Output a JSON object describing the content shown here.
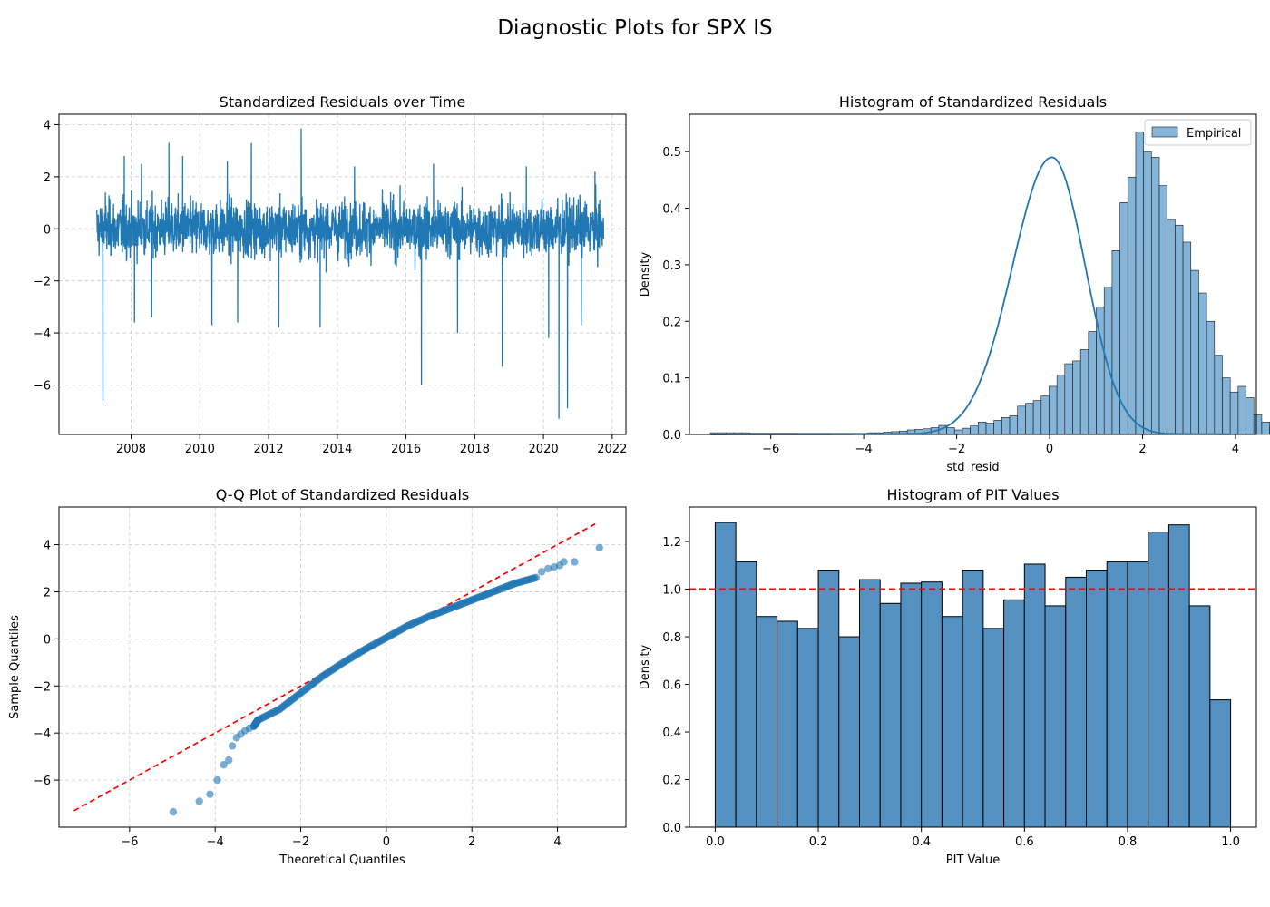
{
  "figure": {
    "suptitle": "Diagnostic Plots for SPX IS"
  },
  "colors": {
    "blue": "#1f77b4",
    "hist_fill": "#5b9bc9",
    "pit_fill": "#5490c0",
    "red": "#ff0000",
    "grid": "#cccccc"
  },
  "chart_data": [
    {
      "id": "residuals",
      "type": "line",
      "title": "Standardized Residuals over Time",
      "xlabel": "",
      "ylabel": "",
      "xlim": [
        2005.9,
        2022.4
      ],
      "ylim": [
        -7.9,
        4.4
      ],
      "xticks": [
        2008,
        2010,
        2012,
        2014,
        2016,
        2018,
        2020,
        2022
      ],
      "xtick_labels": [
        "2008",
        "2010",
        "2012",
        "2014",
        "2016",
        "2018",
        "2020",
        "2022"
      ],
      "yticks": [
        4,
        2,
        0,
        -2,
        -4,
        -6
      ],
      "ytick_labels": [
        "4",
        "2",
        "0",
        "−2",
        "−4",
        "−6"
      ],
      "grid": true,
      "series": [
        {
          "name": "std_resid",
          "x_range": [
            2007.0,
            2021.75
          ],
          "approx_band": [
            -2.5,
            2.2
          ]
        }
      ],
      "spikes": [
        {
          "x": 2007.18,
          "y": -6.6
        },
        {
          "x": 2007.25,
          "y": 1.4
        },
        {
          "x": 2007.8,
          "y": 2.8
        },
        {
          "x": 2008.1,
          "y": -3.6
        },
        {
          "x": 2008.3,
          "y": 2.5
        },
        {
          "x": 2008.6,
          "y": -3.4
        },
        {
          "x": 2009.1,
          "y": 3.3
        },
        {
          "x": 2009.5,
          "y": 2.8
        },
        {
          "x": 2010.35,
          "y": -3.7
        },
        {
          "x": 2010.8,
          "y": 2.6
        },
        {
          "x": 2011.1,
          "y": -3.6
        },
        {
          "x": 2011.5,
          "y": 3.3
        },
        {
          "x": 2012.3,
          "y": -3.8
        },
        {
          "x": 2012.95,
          "y": 3.85
        },
        {
          "x": 2013.5,
          "y": -3.8
        },
        {
          "x": 2014.5,
          "y": 2.4
        },
        {
          "x": 2016.45,
          "y": -6.0
        },
        {
          "x": 2016.8,
          "y": 2.5
        },
        {
          "x": 2017.5,
          "y": -4.0
        },
        {
          "x": 2018.8,
          "y": -5.3
        },
        {
          "x": 2019.5,
          "y": 2.4
        },
        {
          "x": 2020.15,
          "y": -4.2
        },
        {
          "x": 2020.45,
          "y": -7.3
        },
        {
          "x": 2020.7,
          "y": -6.9
        },
        {
          "x": 2021.1,
          "y": -3.7
        },
        {
          "x": 2021.5,
          "y": 2.2
        }
      ]
    },
    {
      "id": "hist_resid",
      "type": "bar",
      "title": "Histogram of Standardized Residuals",
      "xlabel": "std_resid",
      "ylabel": "Density",
      "xlim": [
        -7.75,
        4.45
      ],
      "ylim": [
        0,
        0.566
      ],
      "xticks": [
        -6,
        -4,
        -2,
        0,
        2,
        4
      ],
      "xtick_labels": [
        "−6",
        "−4",
        "−2",
        "0",
        "2",
        "4"
      ],
      "yticks": [
        0.0,
        0.1,
        0.2,
        0.3,
        0.4,
        0.5
      ],
      "ytick_labels": [
        "0.0",
        "0.1",
        "0.2",
        "0.3",
        "0.4",
        "0.5"
      ],
      "legend": {
        "label": "Empirical",
        "placement": "top-right"
      },
      "bin_start": -7.3,
      "bin_width": 0.1695,
      "values": [
        0.003,
        0.003,
        0.003,
        0.003,
        0.003,
        0.002,
        0.002,
        0.002,
        0.002,
        0.002,
        0.002,
        0.002,
        0.002,
        0.002,
        0.002,
        0.002,
        0.002,
        0.002,
        0.002,
        0.002,
        0.003,
        0.003,
        0.004,
        0.005,
        0.006,
        0.008,
        0.009,
        0.01,
        0.012,
        0.016,
        0.012,
        0.008,
        0.011,
        0.015,
        0.022,
        0.02,
        0.025,
        0.03,
        0.033,
        0.05,
        0.055,
        0.06,
        0.068,
        0.085,
        0.105,
        0.125,
        0.13,
        0.15,
        0.182,
        0.225,
        0.26,
        0.325,
        0.41,
        0.455,
        0.535,
        0.5,
        0.49,
        0.44,
        0.38,
        0.37,
        0.34,
        0.29,
        0.25,
        0.2,
        0.14,
        0.1,
        0.075,
        0.085,
        0.065,
        0.035,
        0.022,
        0.013,
        0.016,
        0.008,
        0.005,
        0.004,
        0.004,
        0.003
      ],
      "kde": {
        "label": "",
        "peak": 0.49,
        "center": 0.05,
        "sigma_left": 0.85,
        "sigma_right": 0.72,
        "tail": 0.012
      }
    },
    {
      "id": "qq",
      "type": "scatter",
      "title": "Q-Q Plot of Standardized Residuals",
      "xlabel": "Theoretical Quantiles",
      "ylabel": "Sample Quantiles",
      "xlim": [
        -7.65,
        5.6
      ],
      "ylim": [
        -8.0,
        5.6
      ],
      "xticks": [
        -6,
        -4,
        -2,
        0,
        2,
        4
      ],
      "xtick_labels": [
        "−6",
        "−4",
        "−2",
        "0",
        "2",
        "4"
      ],
      "yticks": [
        4,
        2,
        0,
        -2,
        -4,
        -6
      ],
      "ytick_labels": [
        "4",
        "2",
        "0",
        "−2",
        "−4",
        "−6"
      ],
      "grid": true,
      "reference_line": {
        "x": [
          -7.3,
          4.95
        ],
        "y": [
          -7.3,
          4.95
        ]
      },
      "points": [
        {
          "x": -4.98,
          "y": -7.35
        },
        {
          "x": -4.37,
          "y": -6.9
        },
        {
          "x": -4.12,
          "y": -6.6
        },
        {
          "x": -3.95,
          "y": -6.0
        },
        {
          "x": -3.8,
          "y": -5.35
        },
        {
          "x": -3.68,
          "y": -5.15
        },
        {
          "x": -3.6,
          "y": -4.55
        },
        {
          "x": -3.5,
          "y": -4.2
        },
        {
          "x": -3.4,
          "y": -4.05
        },
        {
          "x": -3.3,
          "y": -3.9
        },
        {
          "x": -3.2,
          "y": -3.8
        },
        {
          "x": -3.1,
          "y": -3.72
        },
        {
          "x": -3.0,
          "y": -3.45
        },
        {
          "x": -2.5,
          "y": -3.0
        },
        {
          "x": -2.0,
          "y": -2.3
        },
        {
          "x": -1.5,
          "y": -1.6
        },
        {
          "x": -1.0,
          "y": -1.0
        },
        {
          "x": -0.5,
          "y": -0.45
        },
        {
          "x": 0.0,
          "y": 0.05
        },
        {
          "x": 0.5,
          "y": 0.55
        },
        {
          "x": 1.0,
          "y": 0.95
        },
        {
          "x": 1.5,
          "y": 1.3
        },
        {
          "x": 2.0,
          "y": 1.65
        },
        {
          "x": 2.5,
          "y": 2.0
        },
        {
          "x": 3.0,
          "y": 2.35
        },
        {
          "x": 3.5,
          "y": 2.6
        },
        {
          "x": 3.63,
          "y": 2.85
        },
        {
          "x": 3.78,
          "y": 2.98
        },
        {
          "x": 3.92,
          "y": 3.05
        },
        {
          "x": 4.05,
          "y": 3.12
        },
        {
          "x": 4.15,
          "y": 3.27
        },
        {
          "x": 4.4,
          "y": 3.27
        },
        {
          "x": 4.98,
          "y": 3.87
        }
      ]
    },
    {
      "id": "pit",
      "type": "bar",
      "title": "Histogram of PIT Values",
      "xlabel": "PIT Value",
      "ylabel": "Density",
      "xlim": [
        -0.05,
        1.05
      ],
      "ylim": [
        0,
        1.345
      ],
      "xticks": [
        0.0,
        0.2,
        0.4,
        0.6,
        0.8,
        1.0
      ],
      "xtick_labels": [
        "0.0",
        "0.2",
        "0.4",
        "0.6",
        "0.8",
        "1.0"
      ],
      "yticks": [
        0.0,
        0.2,
        0.4,
        0.6,
        0.8,
        1.0,
        1.2
      ],
      "ytick_labels": [
        "0.0",
        "0.2",
        "0.4",
        "0.6",
        "0.8",
        "1.0",
        "1.2"
      ],
      "bin_width": 0.04,
      "values": [
        1.28,
        1.115,
        0.885,
        0.865,
        0.835,
        1.08,
        0.8,
        1.04,
        0.94,
        1.025,
        1.03,
        0.885,
        1.08,
        0.835,
        0.955,
        1.105,
        0.93,
        1.05,
        1.08,
        1.115,
        1.115,
        1.24,
        1.27,
        0.93,
        0.535
      ],
      "reference_line": {
        "y": 1.0,
        "style": "dashed"
      }
    }
  ]
}
